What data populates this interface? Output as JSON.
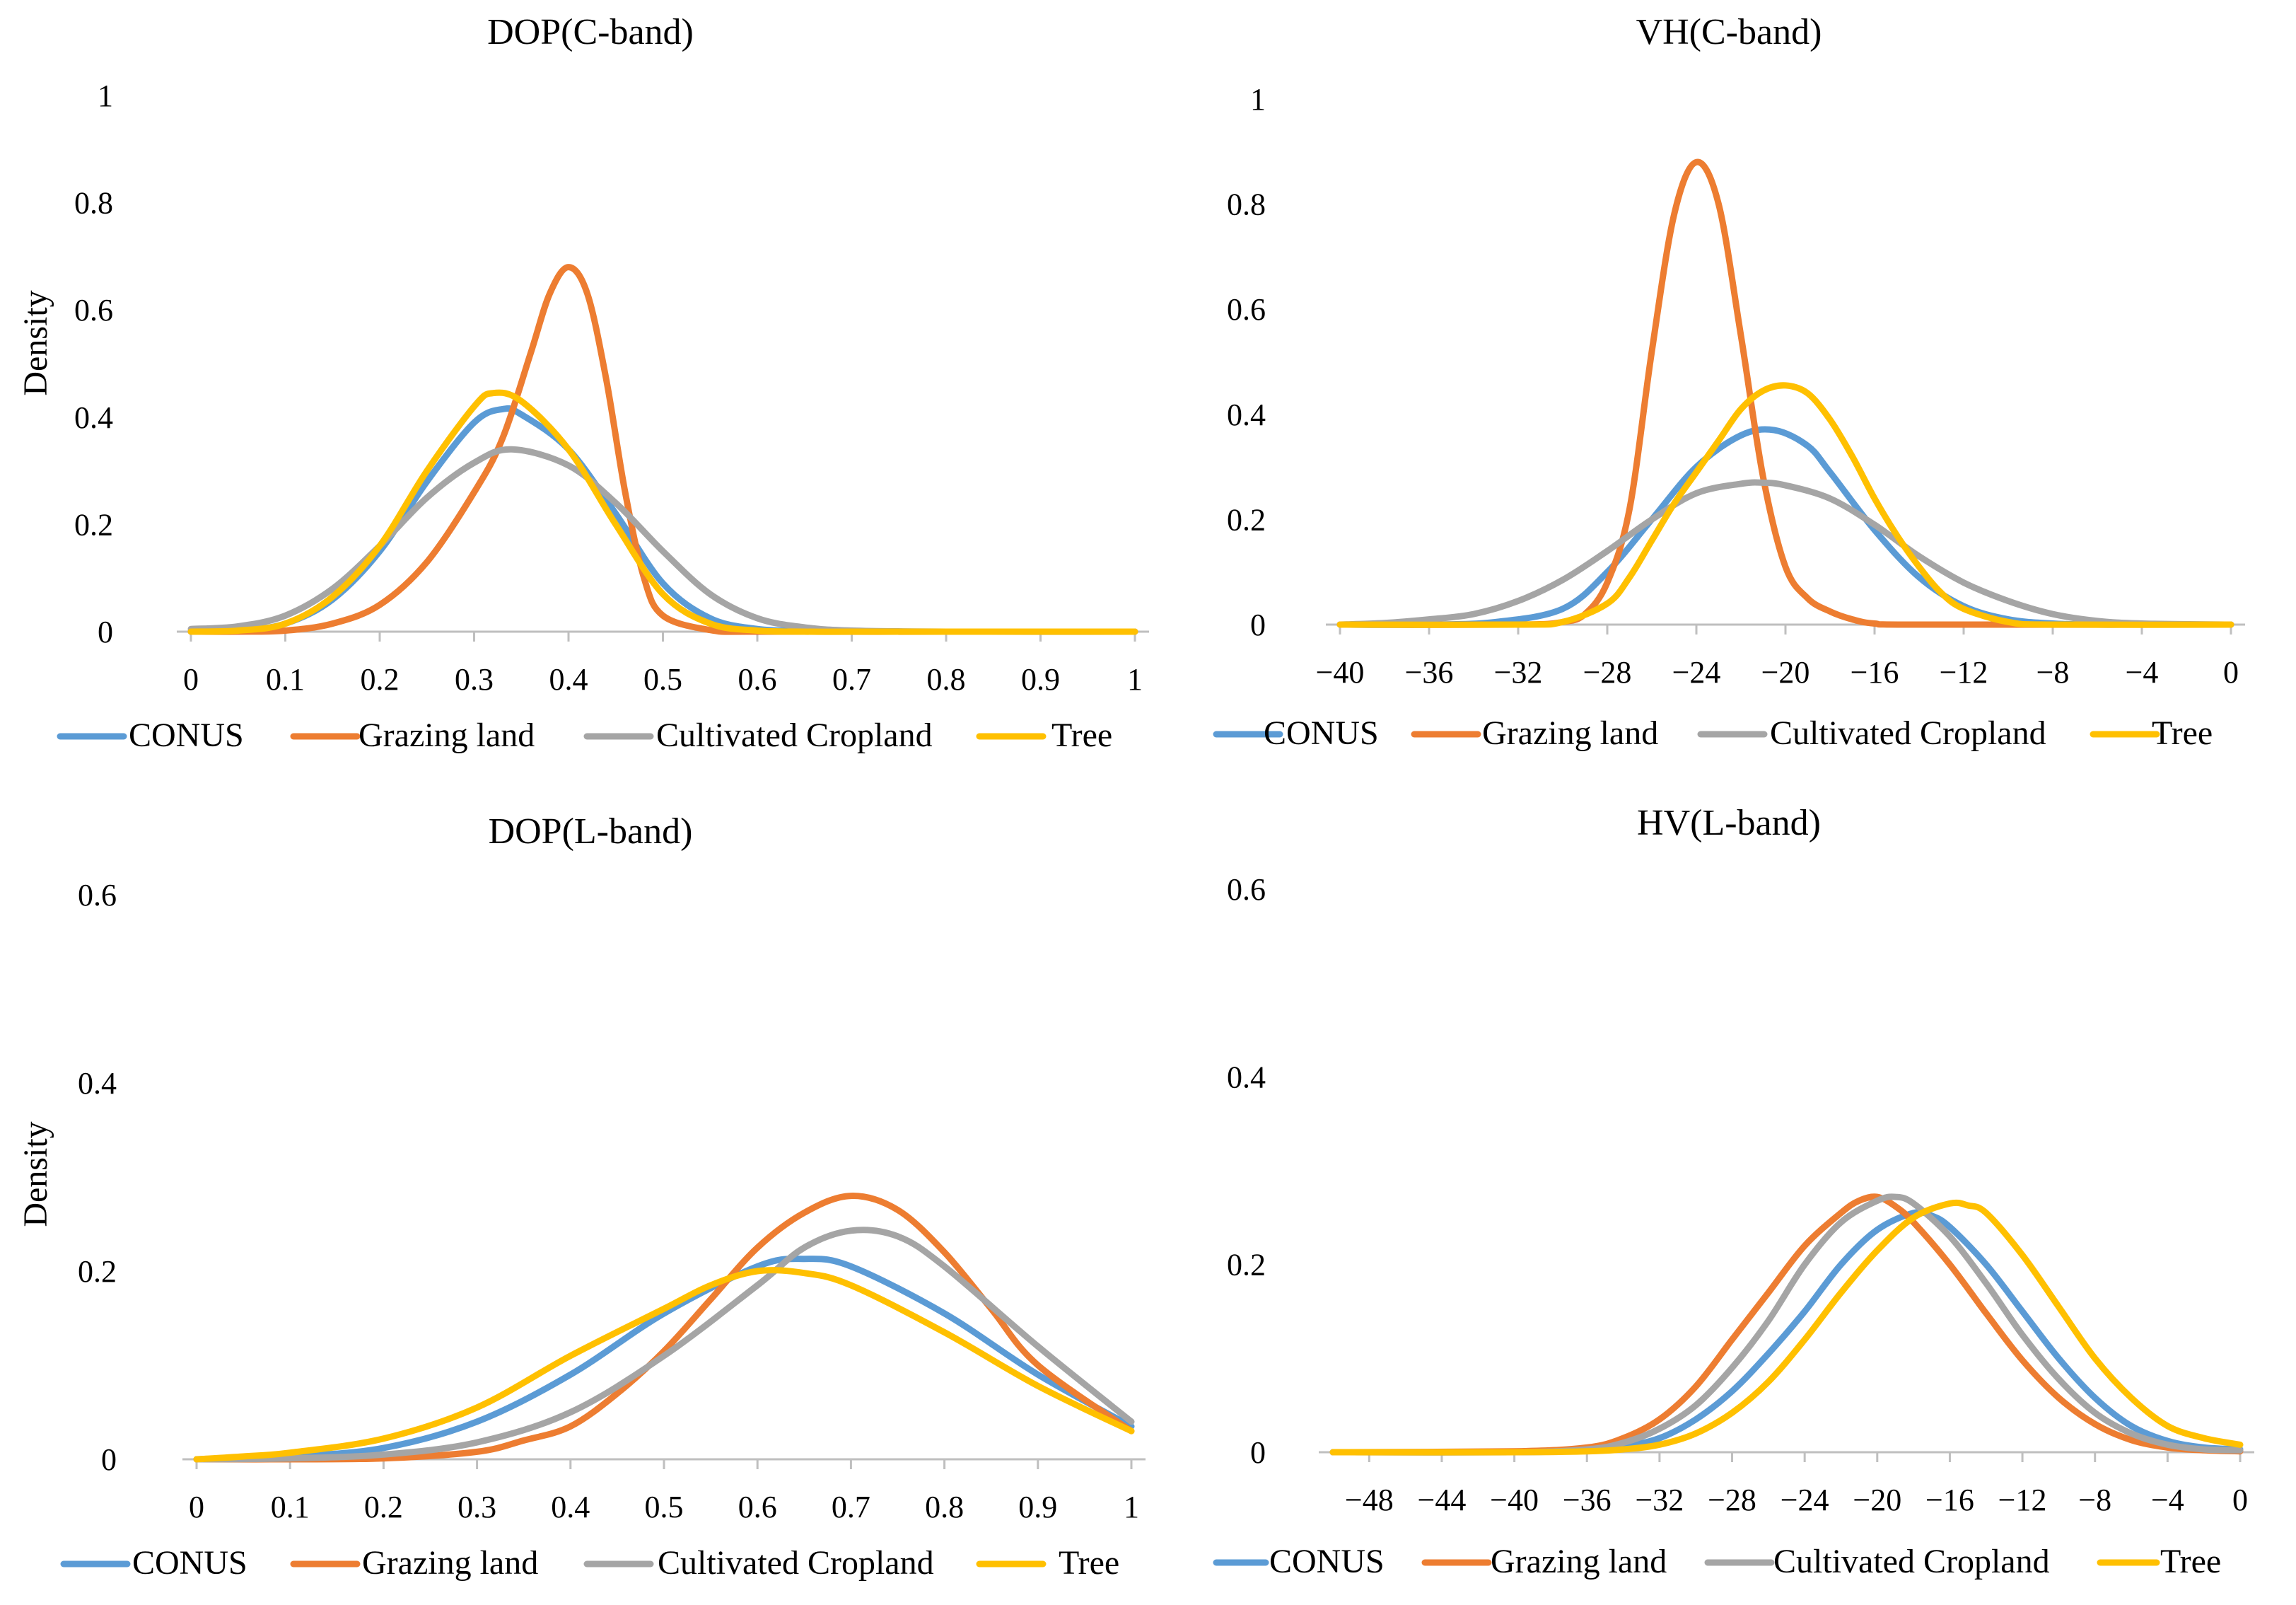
{
  "colors": {
    "conus": "#5b9bd5",
    "grazing": "#ed7d31",
    "cropland": "#a5a5a5",
    "tree": "#ffc000"
  },
  "chart_data": [
    {
      "type": "line",
      "title": "DOP(C-band)",
      "xlabel": "",
      "ylabel": "Density",
      "xlim": [
        0,
        1
      ],
      "ylim": [
        0,
        1
      ],
      "xticks": [
        0,
        0.1,
        0.2,
        0.3,
        0.4,
        0.5,
        0.6,
        0.7,
        0.8,
        0.9,
        1
      ],
      "xtick_labels": [
        "0",
        "0.1",
        "0.2",
        "0.3",
        "0.4",
        "0.5",
        "0.6",
        "0.7",
        "0.8",
        "0.9",
        "1"
      ],
      "yticks": [
        0,
        0.2,
        0.4,
        0.6,
        0.8,
        1
      ],
      "ytick_labels": [
        "0",
        "0.2",
        "0.4",
        "0.6",
        "0.8",
        "1"
      ],
      "legend_position": "bottom",
      "series": [
        {
          "name": "CONUS",
          "color_key": "conus",
          "x": [
            0,
            0.05,
            0.1,
            0.15,
            0.2,
            0.25,
            0.3,
            0.33,
            0.35,
            0.4,
            0.45,
            0.5,
            0.55,
            0.6,
            0.65,
            0.7,
            0.8,
            1
          ],
          "y": [
            0,
            0.002,
            0.015,
            0.06,
            0.15,
            0.28,
            0.39,
            0.415,
            0.405,
            0.34,
            0.22,
            0.09,
            0.025,
            0.005,
            0.001,
            0,
            0,
            0
          ]
        },
        {
          "name": "Grazing land",
          "color_key": "grazing",
          "x": [
            0,
            0.05,
            0.1,
            0.15,
            0.2,
            0.25,
            0.3,
            0.33,
            0.36,
            0.38,
            0.4,
            0.42,
            0.44,
            0.46,
            0.48,
            0.5,
            0.55,
            0.6,
            0.8,
            1
          ],
          "y": [
            0,
            0,
            0.002,
            0.015,
            0.05,
            0.13,
            0.26,
            0.36,
            0.52,
            0.63,
            0.68,
            0.63,
            0.47,
            0.26,
            0.1,
            0.03,
            0.003,
            0,
            0,
            0
          ]
        },
        {
          "name": "Cultivated Cropland",
          "color_key": "cropland",
          "x": [
            0,
            0.05,
            0.1,
            0.15,
            0.2,
            0.25,
            0.3,
            0.34,
            0.4,
            0.45,
            0.5,
            0.55,
            0.6,
            0.65,
            0.7,
            0.8,
            1
          ],
          "y": [
            0.005,
            0.01,
            0.03,
            0.08,
            0.16,
            0.25,
            0.315,
            0.34,
            0.31,
            0.24,
            0.15,
            0.07,
            0.025,
            0.008,
            0.002,
            0,
            0
          ]
        },
        {
          "name": "Tree",
          "color_key": "tree",
          "x": [
            0,
            0.05,
            0.1,
            0.15,
            0.2,
            0.25,
            0.3,
            0.32,
            0.35,
            0.4,
            0.45,
            0.5,
            0.55,
            0.6,
            0.65,
            0.7,
            0.8,
            1
          ],
          "y": [
            0,
            0.002,
            0.015,
            0.065,
            0.16,
            0.3,
            0.42,
            0.445,
            0.43,
            0.34,
            0.2,
            0.07,
            0.015,
            0.002,
            0,
            0,
            0,
            0
          ]
        }
      ]
    },
    {
      "type": "line",
      "title": "VH(C-band)",
      "xlabel": "",
      "ylabel": "",
      "xlim": [
        -40,
        0
      ],
      "ylim": [
        0,
        1
      ],
      "xticks": [
        -40,
        -36,
        -32,
        -28,
        -24,
        -20,
        -16,
        -12,
        -8,
        -4,
        0
      ],
      "xtick_labels": [
        "−40",
        "−36",
        "−32",
        "−28",
        "−24",
        "−20",
        "−16",
        "−12",
        "−8",
        "−4",
        "0"
      ],
      "yticks": [
        0,
        0.2,
        0.4,
        0.6,
        0.8,
        1
      ],
      "ytick_labels": [
        "0",
        "0.2",
        "0.4",
        "0.6",
        "0.8",
        "1"
      ],
      "legend_position": "bottom",
      "series": [
        {
          "name": "CONUS",
          "color_key": "conus",
          "x": [
            -40,
            -36,
            -33,
            -30,
            -28,
            -26,
            -24,
            -22,
            -20.5,
            -19,
            -18,
            -16,
            -14,
            -12,
            -10,
            -8,
            -6,
            -4,
            0
          ],
          "y": [
            0,
            0,
            0.005,
            0.03,
            0.1,
            0.2,
            0.3,
            0.36,
            0.37,
            0.34,
            0.29,
            0.18,
            0.09,
            0.035,
            0.01,
            0.002,
            0,
            0,
            0
          ]
        },
        {
          "name": "Grazing land",
          "color_key": "grazing",
          "x": [
            -40,
            -32,
            -30,
            -29,
            -28,
            -27,
            -26,
            -25,
            -24,
            -23,
            -22,
            -21,
            -20,
            -19,
            -18,
            -17,
            -16,
            -14,
            0
          ],
          "y": [
            0,
            0,
            0.005,
            0.02,
            0.08,
            0.22,
            0.52,
            0.78,
            0.88,
            0.8,
            0.55,
            0.28,
            0.11,
            0.05,
            0.025,
            0.01,
            0.002,
            0,
            0
          ]
        },
        {
          "name": "Cultivated Cropland",
          "color_key": "cropland",
          "x": [
            -40,
            -38,
            -36,
            -34,
            -32,
            -30,
            -28,
            -26,
            -24,
            -22,
            -21,
            -20,
            -18,
            -16,
            -14,
            -12,
            -10,
            -8,
            -6,
            -4,
            0
          ],
          "y": [
            0,
            0.003,
            0.01,
            0.02,
            0.045,
            0.085,
            0.14,
            0.2,
            0.25,
            0.268,
            0.27,
            0.265,
            0.24,
            0.19,
            0.13,
            0.08,
            0.045,
            0.02,
            0.007,
            0.002,
            0
          ]
        },
        {
          "name": "Tree",
          "color_key": "tree",
          "x": [
            -40,
            -32,
            -30,
            -28,
            -27,
            -26,
            -25,
            -24,
            -23,
            -22,
            -21,
            -20,
            -19,
            -18,
            -17,
            -16,
            -15,
            -14,
            -13,
            -12,
            -10,
            -8,
            0
          ],
          "y": [
            0,
            0,
            0.005,
            0.04,
            0.09,
            0.16,
            0.23,
            0.29,
            0.35,
            0.41,
            0.445,
            0.455,
            0.44,
            0.39,
            0.32,
            0.24,
            0.17,
            0.11,
            0.06,
            0.03,
            0.005,
            0,
            0
          ]
        }
      ]
    },
    {
      "type": "line",
      "title": "DOP(L-band)",
      "xlabel": "",
      "ylabel": "Density",
      "xlim": [
        0,
        1
      ],
      "ylim": [
        0,
        0.6
      ],
      "xticks": [
        0,
        0.1,
        0.2,
        0.3,
        0.4,
        0.5,
        0.6,
        0.7,
        0.8,
        0.9,
        1
      ],
      "xtick_labels": [
        "0",
        "0.1",
        "0.2",
        "0.3",
        "0.4",
        "0.5",
        "0.6",
        "0.7",
        "0.8",
        "0.9",
        "1"
      ],
      "yticks": [
        0,
        0.2,
        0.4,
        0.6
      ],
      "ytick_labels": [
        "0",
        "0.2",
        "0.4",
        "0.6"
      ],
      "legend_position": "bottom",
      "series": [
        {
          "name": "CONUS",
          "color_key": "conus",
          "x": [
            0,
            0.1,
            0.2,
            0.3,
            0.4,
            0.5,
            0.6,
            0.65,
            0.7,
            0.8,
            0.9,
            1
          ],
          "y": [
            0,
            0.003,
            0.012,
            0.04,
            0.09,
            0.155,
            0.205,
            0.213,
            0.205,
            0.155,
            0.09,
            0.035
          ]
        },
        {
          "name": "Grazing land",
          "color_key": "grazing",
          "x": [
            0,
            0.1,
            0.2,
            0.3,
            0.35,
            0.4,
            0.45,
            0.5,
            0.55,
            0.6,
            0.65,
            0.7,
            0.75,
            0.8,
            0.85,
            0.9,
            1
          ],
          "y": [
            0,
            0,
            0.001,
            0.008,
            0.02,
            0.035,
            0.07,
            0.115,
            0.17,
            0.225,
            0.262,
            0.28,
            0.265,
            0.22,
            0.16,
            0.1,
            0.03
          ]
        },
        {
          "name": "Cultivated Cropland",
          "color_key": "cropland",
          "x": [
            0,
            0.1,
            0.2,
            0.3,
            0.4,
            0.5,
            0.6,
            0.65,
            0.7,
            0.75,
            0.8,
            0.9,
            1
          ],
          "y": [
            0,
            0.001,
            0.005,
            0.018,
            0.05,
            0.11,
            0.185,
            0.225,
            0.243,
            0.237,
            0.205,
            0.12,
            0.04
          ]
        },
        {
          "name": "Tree",
          "color_key": "tree",
          "x": [
            0,
            0.05,
            0.1,
            0.2,
            0.3,
            0.4,
            0.5,
            0.55,
            0.6,
            0.65,
            0.7,
            0.8,
            0.9,
            1
          ],
          "y": [
            0,
            0.003,
            0.007,
            0.022,
            0.055,
            0.11,
            0.16,
            0.185,
            0.2,
            0.198,
            0.185,
            0.135,
            0.078,
            0.03
          ]
        }
      ]
    },
    {
      "type": "line",
      "title": "HV(L-band)",
      "xlabel": "",
      "ylabel": "",
      "xlim": [
        -50,
        0
      ],
      "ylim": [
        0,
        0.6
      ],
      "xticks": [
        -48,
        -44,
        -40,
        -36,
        -32,
        -28,
        -24,
        -20,
        -16,
        -12,
        -8,
        -4,
        0
      ],
      "xtick_labels": [
        "−48",
        "−44",
        "−40",
        "−36",
        "−32",
        "−28",
        "−24",
        "−20",
        "−16",
        "−12",
        "−8",
        "−4",
        "0"
      ],
      "yticks": [
        0,
        0.2,
        0.4,
        0.6
      ],
      "ytick_labels": [
        "0",
        "0.2",
        "0.4",
        "0.6"
      ],
      "legend_position": "bottom",
      "series": [
        {
          "name": "CONUS",
          "color_key": "conus",
          "x": [
            -50,
            -40,
            -36,
            -34,
            -32,
            -30,
            -28,
            -26,
            -24,
            -22,
            -20,
            -18,
            -17,
            -16,
            -14,
            -12,
            -10,
            -8,
            -6,
            -4,
            -2,
            0
          ],
          "y": [
            0,
            0,
            0.002,
            0.006,
            0.015,
            0.035,
            0.065,
            0.105,
            0.15,
            0.2,
            0.237,
            0.255,
            0.252,
            0.24,
            0.2,
            0.15,
            0.1,
            0.058,
            0.028,
            0.012,
            0.005,
            0.003
          ]
        },
        {
          "name": "Grazing land",
          "color_key": "grazing",
          "x": [
            -50,
            -40,
            -36,
            -34,
            -32,
            -30,
            -28,
            -26,
            -24,
            -22,
            -21,
            -20,
            -19,
            -18,
            -16,
            -14,
            -12,
            -10,
            -8,
            -6,
            -4,
            -2,
            0
          ],
          "y": [
            0,
            0.001,
            0.005,
            0.015,
            0.035,
            0.07,
            0.12,
            0.17,
            0.22,
            0.255,
            0.268,
            0.272,
            0.262,
            0.245,
            0.2,
            0.148,
            0.098,
            0.058,
            0.03,
            0.013,
            0.005,
            0.002,
            0.001
          ]
        },
        {
          "name": "Cultivated Cropland",
          "color_key": "cropland",
          "x": [
            -50,
            -40,
            -36,
            -34,
            -32,
            -30,
            -28,
            -26,
            -24,
            -22,
            -20,
            -19,
            -18,
            -16,
            -14,
            -12,
            -10,
            -8,
            -6,
            -4,
            -2,
            0
          ],
          "y": [
            0,
            0,
            0.003,
            0.01,
            0.025,
            0.05,
            0.09,
            0.14,
            0.2,
            0.245,
            0.268,
            0.272,
            0.265,
            0.23,
            0.18,
            0.125,
            0.078,
            0.042,
            0.02,
            0.008,
            0.003,
            0.002
          ]
        },
        {
          "name": "Tree",
          "color_key": "tree",
          "x": [
            -50,
            -40,
            -36,
            -34,
            -32,
            -30,
            -28,
            -26,
            -24,
            -22,
            -20,
            -18,
            -16,
            -15,
            -14,
            -12,
            -10,
            -8,
            -6,
            -4,
            -2,
            0
          ],
          "y": [
            0,
            0,
            0.001,
            0.003,
            0.008,
            0.02,
            0.042,
            0.075,
            0.12,
            0.17,
            0.215,
            0.25,
            0.265,
            0.263,
            0.255,
            0.21,
            0.155,
            0.1,
            0.058,
            0.028,
            0.015,
            0.008
          ]
        }
      ]
    }
  ]
}
